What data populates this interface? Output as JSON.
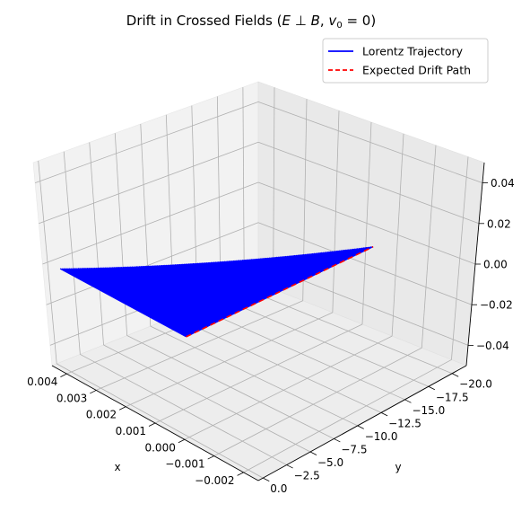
{
  "chart_data": {
    "type": "line",
    "projection": "3d",
    "title": "Drift in Crossed Fields ($\\vec{E} \\perp \\vec{B}$, $\\vec{v}_0 = 0$)",
    "title_parts": {
      "prefix": "Drift in Crossed Fields (",
      "E": "E",
      "perp": " ⊥ ",
      "B": "B",
      "sep": ", ",
      "v": "v",
      "sub": "0",
      "eq": " = 0",
      "suffix": ")"
    },
    "xlabel": "x",
    "ylabel": "y",
    "zlabel": "",
    "xlim": [
      -0.0025,
      0.0045
    ],
    "ylim": [
      0.5,
      -21.5
    ],
    "zlim": [
      -0.05,
      0.05
    ],
    "x_ticks": [
      "−0.002",
      "−0.001",
      "0.000",
      "0.001",
      "0.002",
      "0.003",
      "0.004"
    ],
    "y_ticks": [
      "0.0",
      "−2.5",
      "−5.0",
      "−7.5",
      "−10.0",
      "−12.5",
      "−15.0",
      "−17.5",
      "−20.0"
    ],
    "z_ticks": [
      "−0.04",
      "−0.02",
      "0.00",
      "0.02",
      "0.04"
    ],
    "grid": true,
    "legend": {
      "placement": "top-right",
      "entries": [
        {
          "label": "Lorentz Trajectory",
          "color": "#0000ff",
          "style": "solid"
        },
        {
          "label": "Expected Drift Path",
          "color": "#ff0000",
          "style": "dashed"
        }
      ]
    },
    "series": [
      {
        "name": "Lorentz Trajectory",
        "color": "#0000ff",
        "description_values": {
          "x_min": 0.0,
          "x_max": 0.0041,
          "y_min": -19.0,
          "y_max": 0.0,
          "z": 0.0
        }
      },
      {
        "name": "Expected Drift Path",
        "color": "#ff0000",
        "x": [
          0.0,
          0.0
        ],
        "y": [
          0.0,
          -19.0
        ],
        "z": [
          0.0,
          0.0
        ]
      }
    ]
  }
}
